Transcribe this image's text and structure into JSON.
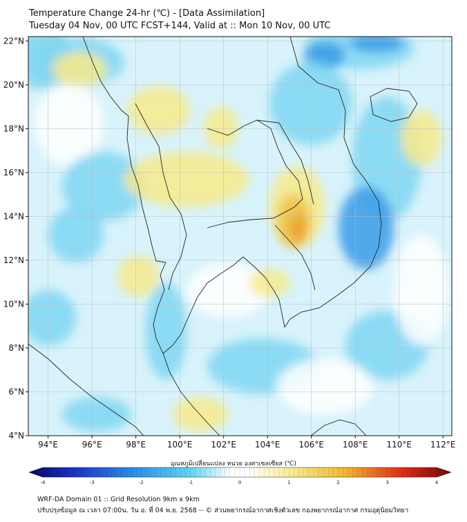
{
  "header": {
    "title": "Temperature Change 24-hr (℃) - [Data Assimilation]",
    "subtitle": "Tuesday 04 Nov, 00 UTC FCST+144, Valid at :: Mon 10 Nov, 00 UTC"
  },
  "map": {
    "lat_labels": [
      "22°N",
      "20°N",
      "18°N",
      "16°N",
      "14°N",
      "12°N",
      "10°N",
      "8°N",
      "6°N",
      "4°N"
    ],
    "lon_labels": [
      "94°E",
      "96°E",
      "98°E",
      "100°E",
      "102°E",
      "104°E",
      "106°E",
      "108°E",
      "110°E",
      "112°E"
    ],
    "lat_range": [
      4,
      22.2
    ],
    "lon_range": [
      93.1,
      112.4
    ],
    "field_colors": {
      "light": "#d8f3fb",
      "cyan": "#7fd6f2",
      "blue": "#3a9be6",
      "yellow": "#f7ea8a",
      "orange": "#f2c34a",
      "deep_orange": "#e9a52f",
      "white": "#ffffff"
    },
    "border_color": "#222222"
  },
  "colorbar": {
    "label": "อุณหภูมิเปลี่ยนแปลง หน่วย องศาเซลเซียส (℃)",
    "ticks": [
      "-4",
      "-3",
      "-2",
      "-1",
      "0",
      "1",
      "2",
      "3",
      "4"
    ],
    "range": [
      -4,
      4
    ]
  },
  "footer": {
    "line1": "WRF-DA Domain 01 :: Grid Resolution 9km x 9km",
    "line2": "ปรับปรุงข้อมูล ณ เวลา 07:00น. วัน อ. ที่ 04 พ.ย. 2568 -- © ส่วนพยากรณ์อากาศเชิงตัวเลข กองพยากรณ์อากาศ กรมอุตุนิยมวิทยา"
  }
}
